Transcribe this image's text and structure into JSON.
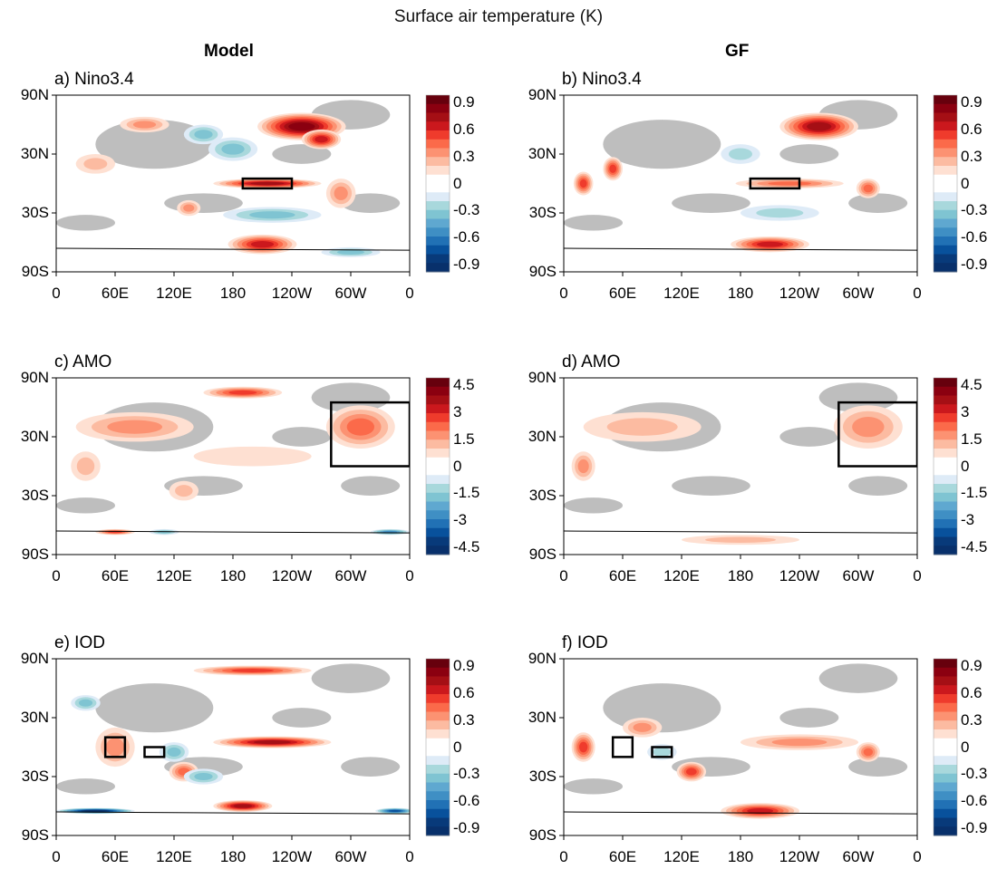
{
  "title": "Surface air temperature (K)",
  "columns": [
    "Model",
    "GF"
  ],
  "lat_ticks": [
    "90N",
    "30N",
    "30S",
    "90S"
  ],
  "lon_ticks": [
    "0",
    "60E",
    "120E",
    "180",
    "120W",
    "60W",
    "0"
  ],
  "colors": {
    "reds": [
      "#67000d",
      "#8b0010",
      "#a50f15",
      "#cb181d",
      "#ef3b2c",
      "#fb6a4a",
      "#fc9272",
      "#fcbba1",
      "#fee0d2"
    ],
    "blues": [
      "#deebf7",
      "#a8d8dc",
      "#7fc4d2",
      "#5fa8d0",
      "#3f8fc4",
      "#2171b5",
      "#08519c",
      "#083a7a",
      "#08306b"
    ],
    "insignificant": "#bebebe"
  },
  "panels": [
    {
      "label": "a) Nino3.4",
      "colorbar": [
        "0.9",
        "0.6",
        "0.3",
        "0",
        "-0.3",
        "-0.6",
        "-0.9"
      ],
      "boxes": [
        [
          190,
          240,
          -5,
          5
        ]
      ]
    },
    {
      "label": "b) Nino3.4",
      "colorbar": [
        "0.9",
        "0.6",
        "0.3",
        "0",
        "-0.3",
        "-0.6",
        "-0.9"
      ],
      "boxes": [
        [
          190,
          240,
          -5,
          5
        ]
      ]
    },
    {
      "label": "c) AMO",
      "colorbar": [
        "4.5",
        "3",
        "1.5",
        "0",
        "-1.5",
        "-3",
        "-4.5"
      ],
      "boxes": [
        [
          280,
          360,
          0,
          65
        ]
      ]
    },
    {
      "label": "d) AMO",
      "colorbar": [
        "4.5",
        "3",
        "1.5",
        "0",
        "-1.5",
        "-3",
        "-4.5"
      ],
      "boxes": [
        [
          280,
          360,
          0,
          65
        ]
      ]
    },
    {
      "label": "e) IOD",
      "colorbar": [
        "0.9",
        "0.6",
        "0.3",
        "0",
        "-0.3",
        "-0.6",
        "-0.9"
      ],
      "boxes": [
        [
          50,
          70,
          -10,
          10
        ],
        [
          90,
          110,
          -10,
          0
        ]
      ]
    },
    {
      "label": "f) IOD",
      "colorbar": [
        "0.9",
        "0.6",
        "0.3",
        "0",
        "-0.3",
        "-0.6",
        "-0.9"
      ],
      "boxes": [
        [
          50,
          70,
          -10,
          10
        ],
        [
          90,
          110,
          -10,
          0
        ]
      ]
    }
  ]
}
